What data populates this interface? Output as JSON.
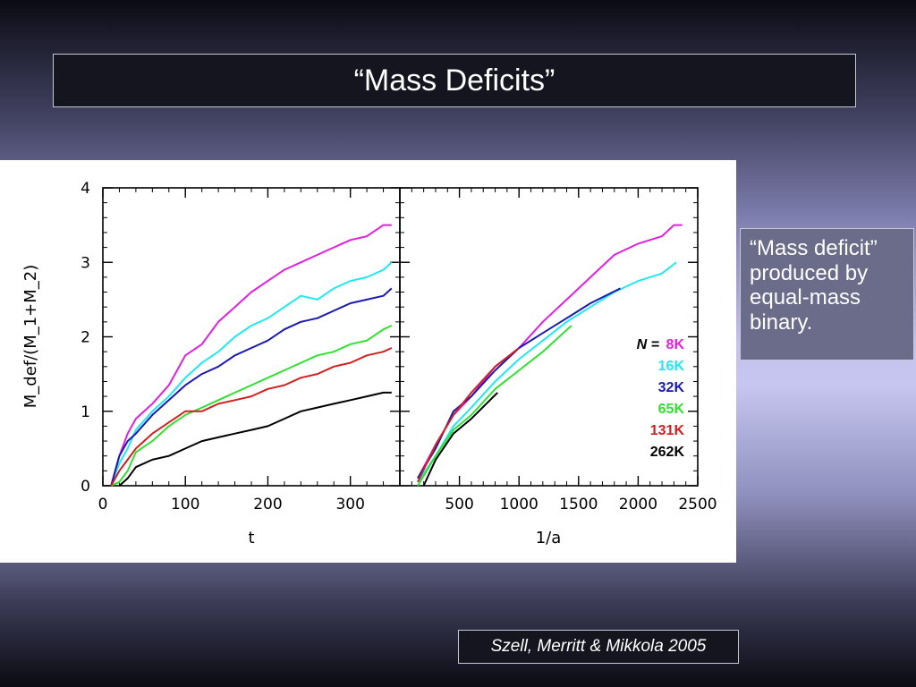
{
  "title": "“Mass Deficits”",
  "note": "“Mass deficit” produced by equal-mass binary.",
  "citation": "Szell, Merritt & Mikkola 2005",
  "colors": {
    "8K": "#e020e0",
    "16K": "#20e8f0",
    "32K": "#1a1ab0",
    "65K": "#30e030",
    "131K": "#d02020",
    "262K": "#000000"
  },
  "chart_data": [
    {
      "type": "line",
      "xlabel": "t",
      "ylabel": "M_def/(M_1+M_2)",
      "xlim": [
        0,
        360
      ],
      "ylim": [
        0,
        4
      ],
      "xticks": [
        "0",
        "100",
        "200",
        "300"
      ],
      "yticks": [
        "0",
        "1",
        "2",
        "3",
        "4"
      ],
      "series": [
        {
          "name": "8K",
          "x": [
            10,
            20,
            30,
            40,
            60,
            80,
            100,
            120,
            140,
            160,
            180,
            200,
            220,
            240,
            260,
            280,
            300,
            320,
            340,
            350
          ],
          "y": [
            0,
            0.4,
            0.7,
            0.9,
            1.1,
            1.35,
            1.75,
            1.9,
            2.2,
            2.4,
            2.6,
            2.75,
            2.9,
            3.0,
            3.1,
            3.2,
            3.3,
            3.35,
            3.5,
            3.5
          ]
        },
        {
          "name": "16K",
          "x": [
            10,
            20,
            30,
            40,
            60,
            80,
            100,
            120,
            140,
            160,
            180,
            200,
            220,
            240,
            260,
            280,
            300,
            320,
            340,
            350
          ],
          "y": [
            0,
            0.3,
            0.5,
            0.75,
            1.0,
            1.2,
            1.45,
            1.65,
            1.8,
            2.0,
            2.15,
            2.25,
            2.4,
            2.55,
            2.5,
            2.65,
            2.75,
            2.8,
            2.9,
            3.0
          ]
        },
        {
          "name": "32K",
          "x": [
            10,
            20,
            30,
            40,
            60,
            80,
            100,
            120,
            140,
            160,
            180,
            200,
            220,
            240,
            260,
            280,
            300,
            320,
            340,
            350
          ],
          "y": [
            0,
            0.4,
            0.6,
            0.7,
            0.95,
            1.15,
            1.35,
            1.5,
            1.6,
            1.75,
            1.85,
            1.95,
            2.1,
            2.2,
            2.25,
            2.35,
            2.45,
            2.5,
            2.55,
            2.65
          ]
        },
        {
          "name": "65K",
          "x": [
            10,
            20,
            30,
            40,
            60,
            80,
            100,
            120,
            140,
            160,
            180,
            200,
            220,
            240,
            260,
            280,
            300,
            320,
            340,
            350
          ],
          "y": [
            0,
            0.05,
            0.2,
            0.45,
            0.6,
            0.8,
            0.95,
            1.05,
            1.15,
            1.25,
            1.35,
            1.45,
            1.55,
            1.65,
            1.75,
            1.8,
            1.9,
            1.95,
            2.1,
            2.15
          ]
        },
        {
          "name": "131K",
          "x": [
            10,
            20,
            30,
            40,
            60,
            80,
            100,
            120,
            140,
            160,
            180,
            200,
            220,
            240,
            260,
            280,
            300,
            320,
            340,
            350
          ],
          "y": [
            0,
            0.2,
            0.35,
            0.5,
            0.7,
            0.85,
            1.0,
            1.0,
            1.1,
            1.15,
            1.2,
            1.3,
            1.35,
            1.45,
            1.5,
            1.6,
            1.65,
            1.75,
            1.8,
            1.85
          ]
        },
        {
          "name": "262K",
          "x": [
            20,
            30,
            40,
            60,
            80,
            100,
            120,
            140,
            160,
            180,
            200,
            220,
            240,
            260,
            280,
            300,
            320,
            340,
            350
          ],
          "y": [
            0,
            0.1,
            0.25,
            0.35,
            0.4,
            0.5,
            0.6,
            0.65,
            0.7,
            0.75,
            0.8,
            0.9,
            1.0,
            1.05,
            1.1,
            1.15,
            1.2,
            1.25,
            1.25
          ]
        }
      ]
    },
    {
      "type": "line",
      "xlabel": "1/a",
      "xlim": [
        0,
        2500
      ],
      "ylim": [
        0,
        4
      ],
      "xticks": [
        "500",
        "1000",
        "1500",
        "2000",
        "2500"
      ],
      "series": [
        {
          "name": "8K",
          "x": [
            150,
            300,
            450,
            600,
            800,
            1000,
            1200,
            1400,
            1600,
            1800,
            2000,
            2200,
            2300,
            2370
          ],
          "y": [
            0.1,
            0.55,
            0.95,
            1.2,
            1.6,
            1.85,
            2.2,
            2.5,
            2.8,
            3.1,
            3.25,
            3.35,
            3.5,
            3.5
          ]
        },
        {
          "name": "16K",
          "x": [
            150,
            300,
            450,
            600,
            800,
            1000,
            1200,
            1400,
            1600,
            1800,
            2000,
            2200,
            2320
          ],
          "y": [
            0.05,
            0.4,
            0.8,
            1.05,
            1.4,
            1.7,
            1.95,
            2.2,
            2.4,
            2.6,
            2.75,
            2.85,
            3.0
          ]
        },
        {
          "name": "32K",
          "x": [
            150,
            300,
            450,
            600,
            800,
            1000,
            1200,
            1400,
            1600,
            1850
          ],
          "y": [
            0.1,
            0.5,
            1.0,
            1.2,
            1.55,
            1.85,
            2.05,
            2.25,
            2.45,
            2.65
          ]
        },
        {
          "name": "65K",
          "x": [
            150,
            300,
            450,
            600,
            800,
            1000,
            1200,
            1440
          ],
          "y": [
            0,
            0.4,
            0.75,
            0.95,
            1.3,
            1.55,
            1.8,
            2.15
          ]
        },
        {
          "name": "131K",
          "x": [
            150,
            300,
            450,
            600,
            800,
            1000
          ],
          "y": [
            0.05,
            0.55,
            0.95,
            1.25,
            1.6,
            1.85
          ]
        },
        {
          "name": "262K",
          "x": [
            200,
            300,
            450,
            600,
            820
          ],
          "y": [
            0,
            0.35,
            0.7,
            0.9,
            1.25
          ]
        }
      ]
    }
  ],
  "legend": {
    "prefix": "N = ",
    "entries": [
      "8K",
      "16K",
      "32K",
      "65K",
      "131K",
      "262K"
    ]
  }
}
